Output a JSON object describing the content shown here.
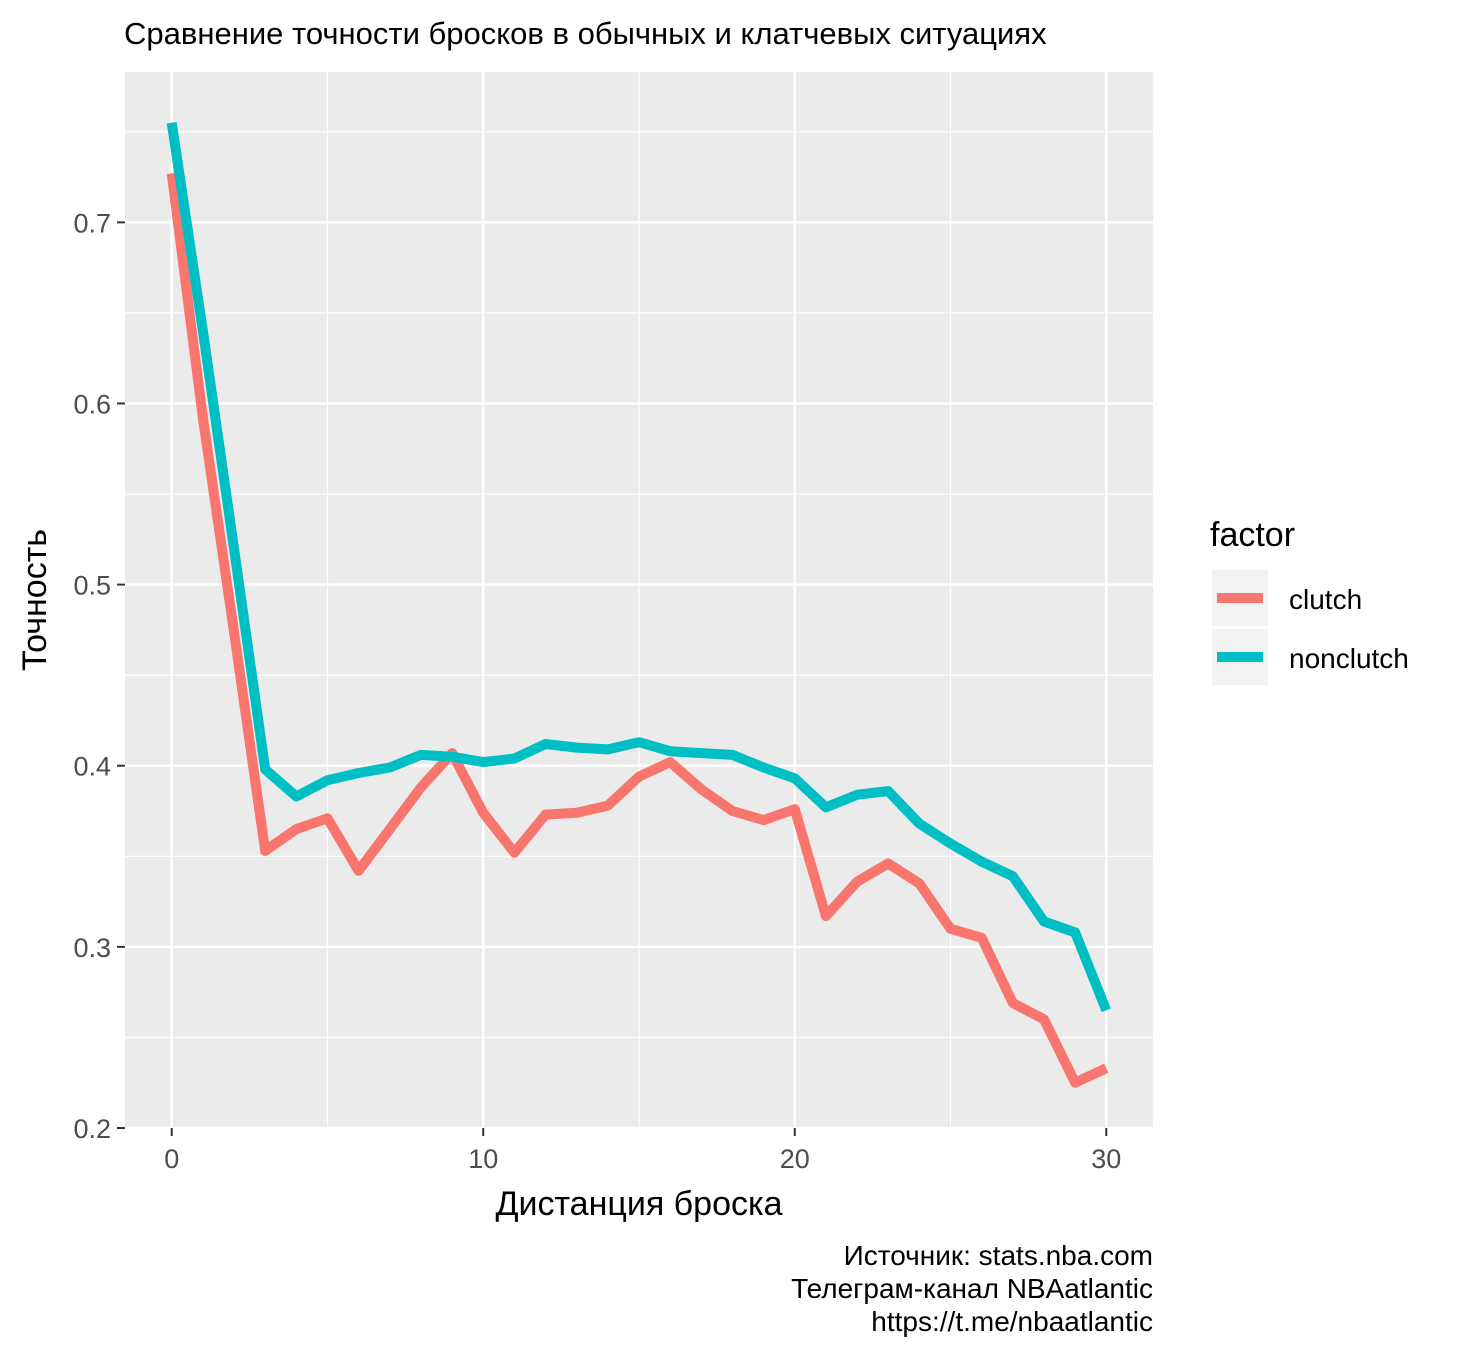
{
  "chart_data": {
    "type": "line",
    "title": "Сравнение точности бросков в обычных и клатчевых ситуациях",
    "xlabel": "Дистанция броска",
    "ylabel": "Точность",
    "xlim": [
      -1.5,
      31.5
    ],
    "ylim": [
      0.2,
      0.783
    ],
    "x_ticks": [
      "0",
      "10",
      "20",
      "30"
    ],
    "y_ticks": [
      "0.2",
      "0.3",
      "0.4",
      "0.5",
      "0.6",
      "0.7"
    ],
    "grid": true,
    "legend_position": "right",
    "legend_title": "factor",
    "x": [
      0,
      1,
      2,
      3,
      4,
      5,
      6,
      7,
      8,
      9,
      10,
      11,
      12,
      13,
      14,
      15,
      16,
      17,
      18,
      19,
      20,
      21,
      22,
      23,
      24,
      25,
      26,
      27,
      28,
      29,
      30
    ],
    "series": [
      {
        "name": "clutch",
        "color": "#F8766D",
        "values": [
          0.727,
          0.592,
          0.474,
          0.353,
          0.365,
          0.371,
          0.342,
          0.365,
          0.388,
          0.407,
          0.374,
          0.352,
          0.373,
          0.374,
          0.378,
          0.394,
          0.402,
          0.387,
          0.375,
          0.37,
          0.376,
          0.317,
          0.336,
          0.346,
          0.335,
          0.31,
          0.305,
          0.269,
          0.26,
          0.225,
          0.233
        ]
      },
      {
        "name": "nonclutch",
        "color": "#00BFC4",
        "values": [
          0.755,
          0.64,
          0.52,
          0.398,
          0.383,
          0.392,
          0.396,
          0.399,
          0.406,
          0.405,
          0.402,
          0.404,
          0.412,
          0.41,
          0.409,
          0.413,
          0.408,
          0.407,
          0.406,
          0.399,
          0.393,
          0.377,
          0.384,
          0.386,
          0.368,
          0.357,
          0.347,
          0.339,
          0.314,
          0.308,
          0.265
        ]
      }
    ]
  },
  "caption": {
    "line1": "Источник: stats.nba.com",
    "line2": "Телеграм-канал NBAatlantic",
    "line3": "https://t.me/nbaatlantic"
  }
}
